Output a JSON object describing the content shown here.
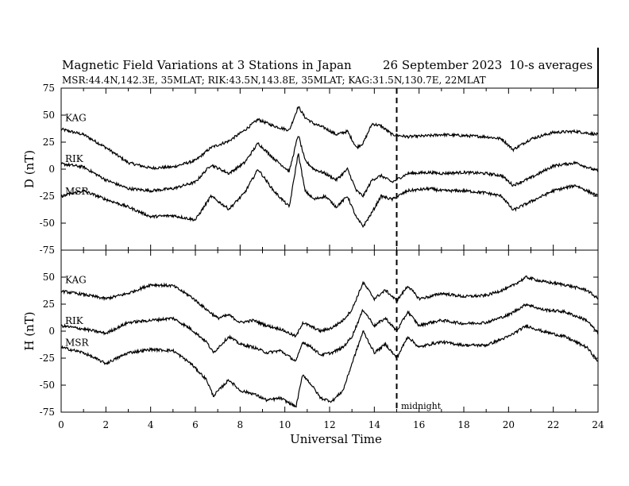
{
  "header": {
    "title": "Magnetic Field Variations at 3 Stations in Japan",
    "date": "26 September 2023",
    "averaging": "10-s averages",
    "stations_line": "MSR:44.4N,142.3E, 35MLAT;  RIK:43.5N,143.8E, 35MLAT;  KAG:31.5N,130.7E, 22MLAT"
  },
  "chart_data": [
    {
      "type": "line",
      "panel": "D",
      "ylabel": "D (nT)",
      "ylim": [
        -75,
        75
      ],
      "yticks": [
        75,
        50,
        25,
        0,
        -25,
        -50,
        -75
      ],
      "xlim": [
        0,
        24
      ],
      "series": [
        {
          "name": "KAG",
          "x": [
            0,
            1,
            2,
            3,
            4,
            5,
            6,
            6.7,
            7.5,
            8.2,
            8.8,
            9.5,
            10.2,
            10.6,
            10.9,
            11.3,
            11.8,
            12.3,
            12.8,
            13.2,
            13.5,
            13.9,
            14.3,
            14.8,
            15.5,
            16.5,
            17,
            18,
            19,
            19.7,
            20.2,
            21,
            22,
            23,
            24
          ],
          "y": [
            37,
            32,
            20,
            6,
            1,
            2,
            8,
            20,
            26,
            36,
            46,
            40,
            36,
            58,
            48,
            42,
            38,
            32,
            35,
            20,
            24,
            42,
            40,
            32,
            30,
            31,
            32,
            31,
            30,
            28,
            18,
            28,
            34,
            35,
            32
          ]
        },
        {
          "name": "RIK",
          "x": [
            0,
            1,
            2,
            3,
            4,
            5,
            6,
            6.7,
            7.5,
            8.2,
            8.8,
            9.5,
            10.2,
            10.6,
            10.9,
            11.3,
            11.8,
            12.3,
            12.8,
            13.2,
            13.5,
            13.9,
            14.3,
            14.8,
            15.5,
            16.5,
            17,
            18,
            19,
            19.7,
            20.2,
            21,
            22,
            23,
            24
          ],
          "y": [
            5,
            2,
            -10,
            -18,
            -20,
            -18,
            -12,
            4,
            -4,
            6,
            24,
            10,
            -2,
            32,
            8,
            0,
            -4,
            -10,
            0,
            -20,
            -25,
            -10,
            -6,
            -12,
            -4,
            -3,
            -4,
            -3,
            -4,
            -6,
            -15,
            -8,
            3,
            6,
            -2
          ]
        },
        {
          "name": "MSR",
          "x": [
            0,
            1,
            2,
            3,
            4,
            5,
            6,
            6.7,
            7.5,
            8.2,
            8.8,
            9.5,
            10.2,
            10.6,
            10.9,
            11.3,
            11.8,
            12.3,
            12.8,
            13.2,
            13.5,
            13.9,
            14.3,
            14.8,
            15.5,
            16.5,
            17,
            18,
            19,
            19.7,
            20.2,
            21,
            22,
            23,
            24
          ],
          "y": [
            -25,
            -20,
            -28,
            -35,
            -44,
            -43,
            -47,
            -25,
            -37,
            -22,
            0,
            -20,
            -35,
            15,
            -20,
            -28,
            -25,
            -35,
            -25,
            -45,
            -53,
            -40,
            -25,
            -28,
            -20,
            -18,
            -20,
            -20,
            -22,
            -25,
            -38,
            -30,
            -20,
            -15,
            -25
          ]
        }
      ],
      "annotations": {
        "midnight_ut": 15
      }
    },
    {
      "type": "line",
      "panel": "H",
      "ylabel": "H (nT)",
      "ylim": [
        -75,
        75
      ],
      "yticks": [
        75,
        50,
        25,
        0,
        -25,
        -50,
        -75
      ],
      "xlim": [
        0,
        24
      ],
      "xticks": [
        0,
        2,
        4,
        6,
        8,
        10,
        12,
        14,
        16,
        18,
        20,
        22,
        24
      ],
      "xlabel": "Universal Time",
      "series": [
        {
          "name": "KAG",
          "x": [
            0,
            1,
            2,
            3,
            4,
            5,
            5.8,
            6.5,
            7,
            7.5,
            8,
            8.6,
            9.2,
            9.8,
            10.5,
            10.8,
            11.2,
            11.6,
            12.1,
            12.6,
            13,
            13.5,
            14,
            14.5,
            15,
            15.5,
            16,
            16.5,
            17,
            18,
            19,
            20,
            20.8,
            21.5,
            22.5,
            23.5,
            24
          ],
          "y": [
            37,
            34,
            30,
            35,
            43,
            42,
            32,
            20,
            12,
            15,
            8,
            10,
            5,
            2,
            -5,
            8,
            4,
            0,
            3,
            10,
            20,
            45,
            30,
            38,
            28,
            42,
            30,
            32,
            35,
            32,
            33,
            40,
            50,
            46,
            43,
            38,
            30
          ]
        },
        {
          "name": "RIK",
          "x": [
            0,
            1,
            2,
            3,
            4,
            5,
            5.8,
            6.5,
            6.8,
            7.5,
            8,
            8.6,
            9.2,
            9.8,
            10.5,
            10.8,
            11.2,
            11.6,
            12.1,
            12.6,
            13,
            13.5,
            14,
            14.5,
            15,
            15.5,
            16,
            16.5,
            17,
            18,
            19,
            20,
            20.8,
            21.5,
            22.5,
            23.5,
            24
          ],
          "y": [
            5,
            2,
            -2,
            8,
            10,
            12,
            2,
            -10,
            -20,
            -5,
            -12,
            -15,
            -20,
            -18,
            -28,
            -10,
            -15,
            -22,
            -20,
            -15,
            -5,
            20,
            5,
            12,
            0,
            18,
            5,
            8,
            10,
            7,
            8,
            15,
            25,
            20,
            18,
            10,
            -2
          ]
        },
        {
          "name": "MSR",
          "x": [
            0,
            1,
            2,
            3,
            4,
            5,
            5.8,
            6.5,
            6.8,
            7.5,
            8,
            8.6,
            9.2,
            9.8,
            10.5,
            10.8,
            11.2,
            11.6,
            12.1,
            12.6,
            13,
            13.5,
            14,
            14.5,
            15,
            15.5,
            16,
            16.5,
            17,
            18,
            19,
            20,
            20.8,
            21.5,
            22.5,
            23.5,
            24
          ],
          "y": [
            -15,
            -20,
            -30,
            -20,
            -17,
            -18,
            -30,
            -45,
            -60,
            -45,
            -55,
            -58,
            -64,
            -62,
            -70,
            -40,
            -50,
            -62,
            -65,
            -55,
            -30,
            0,
            -20,
            -12,
            -25,
            -5,
            -15,
            -12,
            -10,
            -13,
            -13,
            -5,
            5,
            0,
            -5,
            -15,
            -28
          ]
        }
      ],
      "annotations": {
        "midnight_ut": 15,
        "midnight_label": "midnight"
      }
    }
  ]
}
